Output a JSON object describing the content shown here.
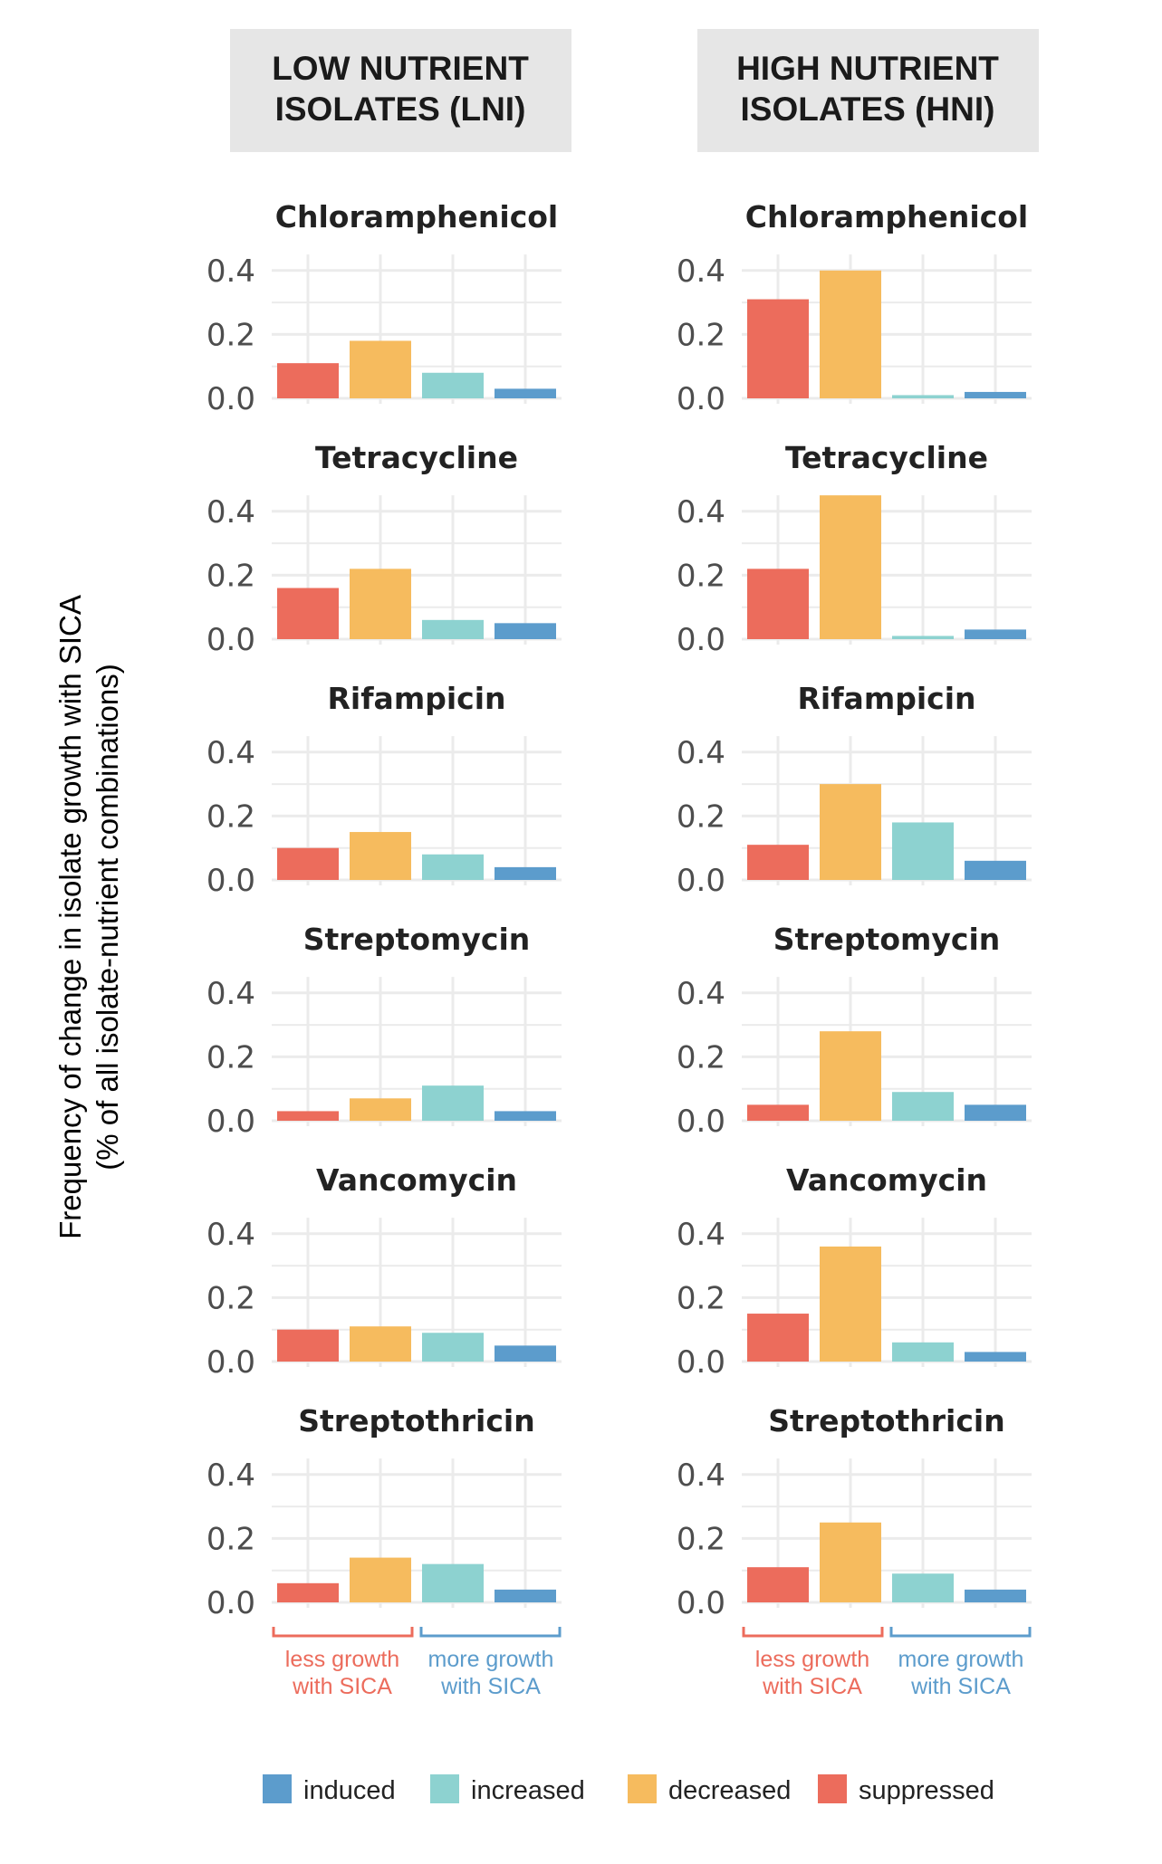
{
  "strips": [
    "LOW NUTRIENT\nISOLATES (LNI)",
    "HIGH NUTRIENT\nISOLATES (HNI)"
  ],
  "y_axis": {
    "title": "Frequency of change in isolate growth with SICA",
    "subtitle": "(% of all isolate-nutrient combinations)"
  },
  "brackets": {
    "less": "less growth\nwith SICA",
    "more": "more growth\nwith SICA"
  },
  "colors": {
    "suppressed": "#ec6c5c",
    "decreased": "#f6bb5e",
    "increased": "#8dd2d0",
    "induced": "#5c9ccc",
    "less_bracket": "#ec6c5c",
    "more_bracket": "#5c9ccc",
    "strip_bg": "#e6e6e6",
    "grid": "#ebebeb"
  },
  "legend": [
    {
      "key": "induced",
      "label": "induced"
    },
    {
      "key": "increased",
      "label": "increased"
    },
    {
      "key": "decreased",
      "label": "decreased"
    },
    {
      "key": "suppressed",
      "label": "suppressed"
    }
  ],
  "chart_data": {
    "type": "bar",
    "categories": [
      "suppressed",
      "decreased",
      "increased",
      "induced"
    ],
    "y_ticks": [
      "0.0",
      "0.2",
      "0.4"
    ],
    "ylim": [
      0,
      0.45
    ],
    "grid": true,
    "legend_position": "bottom",
    "columns": [
      {
        "strip": "LOW NUTRIENT ISOLATES (LNI)",
        "panels": [
          {
            "title": "Chloramphenicol",
            "values": [
              0.11,
              0.18,
              0.08,
              0.03
            ]
          },
          {
            "title": "Tetracycline",
            "values": [
              0.16,
              0.22,
              0.06,
              0.05
            ]
          },
          {
            "title": "Rifampicin",
            "values": [
              0.1,
              0.15,
              0.08,
              0.04
            ]
          },
          {
            "title": "Streptomycin",
            "values": [
              0.03,
              0.07,
              0.11,
              0.03
            ]
          },
          {
            "title": "Vancomycin",
            "values": [
              0.1,
              0.11,
              0.09,
              0.05
            ]
          },
          {
            "title": "Streptothricin",
            "values": [
              0.06,
              0.14,
              0.12,
              0.04
            ]
          }
        ]
      },
      {
        "strip": "HIGH NUTRIENT ISOLATES (HNI)",
        "panels": [
          {
            "title": "Chloramphenicol",
            "values": [
              0.31,
              0.4,
              0.01,
              0.02
            ]
          },
          {
            "title": "Tetracycline",
            "values": [
              0.22,
              0.45,
              0.01,
              0.03
            ]
          },
          {
            "title": "Rifampicin",
            "values": [
              0.11,
              0.3,
              0.18,
              0.06
            ]
          },
          {
            "title": "Streptomycin",
            "values": [
              0.05,
              0.28,
              0.09,
              0.05
            ]
          },
          {
            "title": "Vancomycin",
            "values": [
              0.15,
              0.36,
              0.06,
              0.03
            ]
          },
          {
            "title": "Streptothricin",
            "values": [
              0.11,
              0.25,
              0.09,
              0.04
            ]
          }
        ]
      }
    ]
  }
}
